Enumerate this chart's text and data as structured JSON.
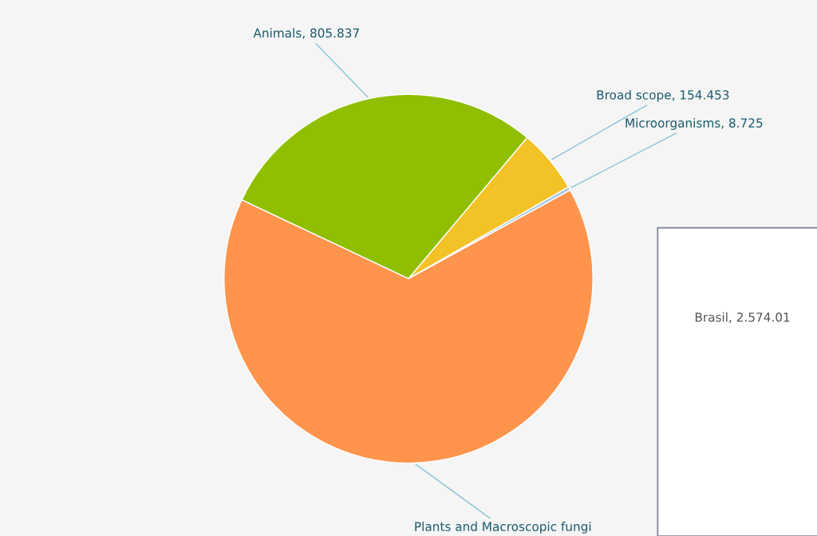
{
  "chart_data": {
    "type": "pie",
    "categories": [
      "Animals",
      "Broad scope",
      "Microorganisms",
      "Plants and Macroscopic fungi"
    ],
    "values": [
      805837,
      154453,
      8725,
      1800000
    ],
    "value_labels": [
      "805.837",
      "154.453",
      "8.725",
      null
    ],
    "colors": [
      "#8fbf00",
      "#f2c227",
      "#a8c8e0",
      "#ff944d"
    ],
    "annotations": [
      "Brasil, 2.574.01"
    ]
  }
}
